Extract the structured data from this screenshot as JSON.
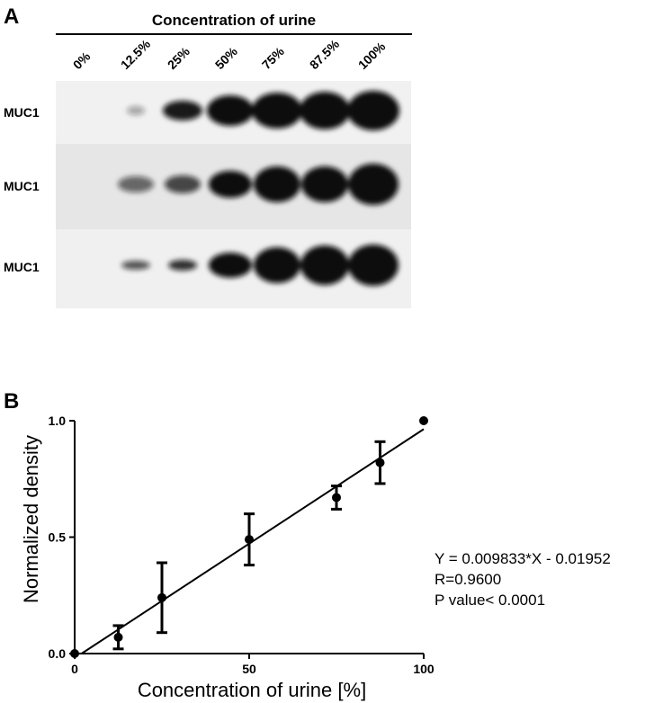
{
  "panel_a": {
    "label": "A",
    "title": "Concentration of urine",
    "lanes": [
      "0%",
      "12.5%",
      "25%",
      "50%",
      "75%",
      "87.5%",
      "100%"
    ],
    "rows": [
      "MUC1",
      "MUC1",
      "MUC1"
    ]
  },
  "panel_b_label": "B",
  "chart_data": {
    "type": "scatter",
    "x_label": "Concentration of urine [%]",
    "y_label": "Normalized density",
    "x": [
      0,
      12.5,
      25,
      50,
      75,
      87.5,
      100
    ],
    "values": [
      0,
      0.07,
      0.24,
      0.49,
      0.67,
      0.82,
      1.0
    ],
    "errors": [
      0,
      0.05,
      0.15,
      0.11,
      0.05,
      0.09,
      0
    ],
    "color": "#000000",
    "xlim": [
      0,
      100
    ],
    "xticks": [
      0,
      50,
      100
    ],
    "ylim": [
      0,
      1.0
    ],
    "yticks": [
      {
        "value": 0,
        "label": "0.0"
      },
      {
        "value": 0.5,
        "label": "0.5"
      },
      {
        "value": 1.0,
        "label": "1.0"
      }
    ],
    "regression": {
      "slope": 0.009833,
      "intercept": -0.01952
    },
    "annotations": [
      "Y = 0.009833*X - 0.01952",
      "R=0.9600",
      "P value< 0.0001"
    ]
  }
}
